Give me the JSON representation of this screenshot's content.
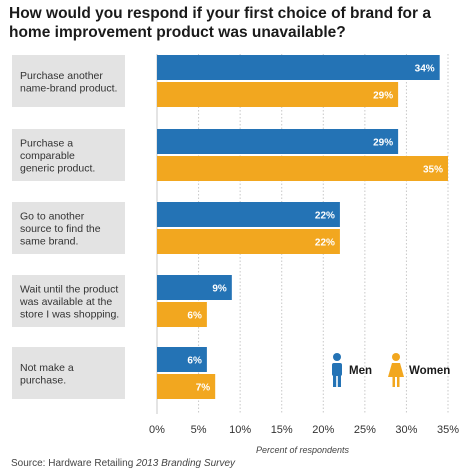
{
  "title_lines": [
    "How would you respond if your first choice of brand for a",
    "home improvement product was unavailable?"
  ],
  "source": {
    "prefix": "Source: Hardware Retailing ",
    "italic": "2013 Branding Survey"
  },
  "chart_data": {
    "type": "bar",
    "orientation": "horizontal",
    "categories": [
      [
        "Purchase another",
        "name-brand product."
      ],
      [
        "Purchase a",
        "comparable",
        "generic product."
      ],
      [
        "Go to another",
        "source to find the",
        "same brand."
      ],
      [
        "Wait until the product",
        "was available at the",
        "store I was shopping."
      ],
      [
        "Not make a",
        "purchase."
      ]
    ],
    "series": [
      {
        "name": "Men",
        "color": "#2473b5",
        "values": [
          34,
          29,
          22,
          9,
          6
        ],
        "labels": [
          "34%",
          "29%",
          "22%",
          "9%",
          "6%"
        ]
      },
      {
        "name": "Women",
        "color": "#f2a71f",
        "values": [
          29,
          35,
          22,
          6,
          7
        ],
        "labels": [
          "29%",
          "35%",
          "22%",
          "6%",
          "7%"
        ]
      }
    ],
    "xlim": [
      0,
      35
    ],
    "xticks": [
      "0%",
      "5%",
      "10%",
      "15%",
      "20%",
      "25%",
      "30%",
      "35%"
    ],
    "xlabel": "Percent of respondents",
    "grid": true,
    "legend_position": "bottom-right",
    "legend_icons": [
      "person-male-icon",
      "person-female-icon"
    ]
  }
}
